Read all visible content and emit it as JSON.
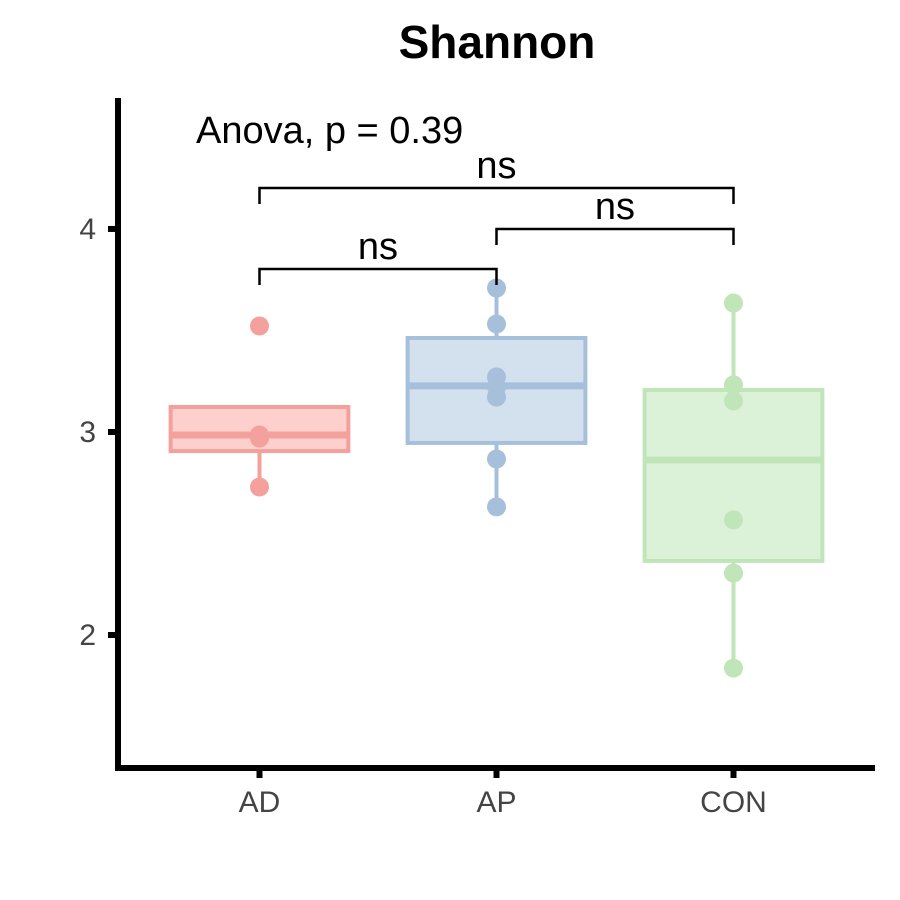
{
  "chart_data": {
    "type": "box",
    "title": "Shannon",
    "annotation": "Anova, p = 0.39",
    "categories": [
      "AD",
      "AP",
      "CON"
    ],
    "ylim": [
      1.345,
      4.645
    ],
    "yticks": [
      2,
      3,
      4
    ],
    "series": [
      {
        "name": "AD",
        "color": "#f4a09c",
        "fill": "#fdd0cd",
        "q1": 2.906,
        "median": 2.985,
        "q3": 3.123,
        "whisker_low": 2.729,
        "whisker_high": 3.123,
        "points": [
          3.522,
          2.985,
          2.97,
          2.729
        ]
      },
      {
        "name": "AP",
        "color": "#a6c0dc",
        "fill": "#d3e0ee",
        "q1": 2.946,
        "median": 3.227,
        "q3": 3.463,
        "whisker_low": 2.631,
        "whisker_high": 3.709,
        "points": [
          3.709,
          3.532,
          3.271,
          3.222,
          3.172,
          2.867,
          2.631
        ]
      },
      {
        "name": "CON",
        "color": "#bfe5b8",
        "fill": "#dcf2d8",
        "q1": 2.365,
        "median": 2.862,
        "q3": 3.207,
        "whisker_low": 1.837,
        "whisker_high": 3.635,
        "points": [
          3.635,
          3.232,
          3.153,
          2.567,
          2.305,
          1.837
        ]
      }
    ],
    "comparisons": [
      {
        "from": "AD",
        "to": "AP",
        "label": "ns",
        "y": 3.803
      },
      {
        "from": "AP",
        "to": "CON",
        "label": "ns",
        "y": 4.0
      },
      {
        "from": "AD",
        "to": "CON",
        "label": "ns",
        "y": 4.202
      }
    ]
  }
}
